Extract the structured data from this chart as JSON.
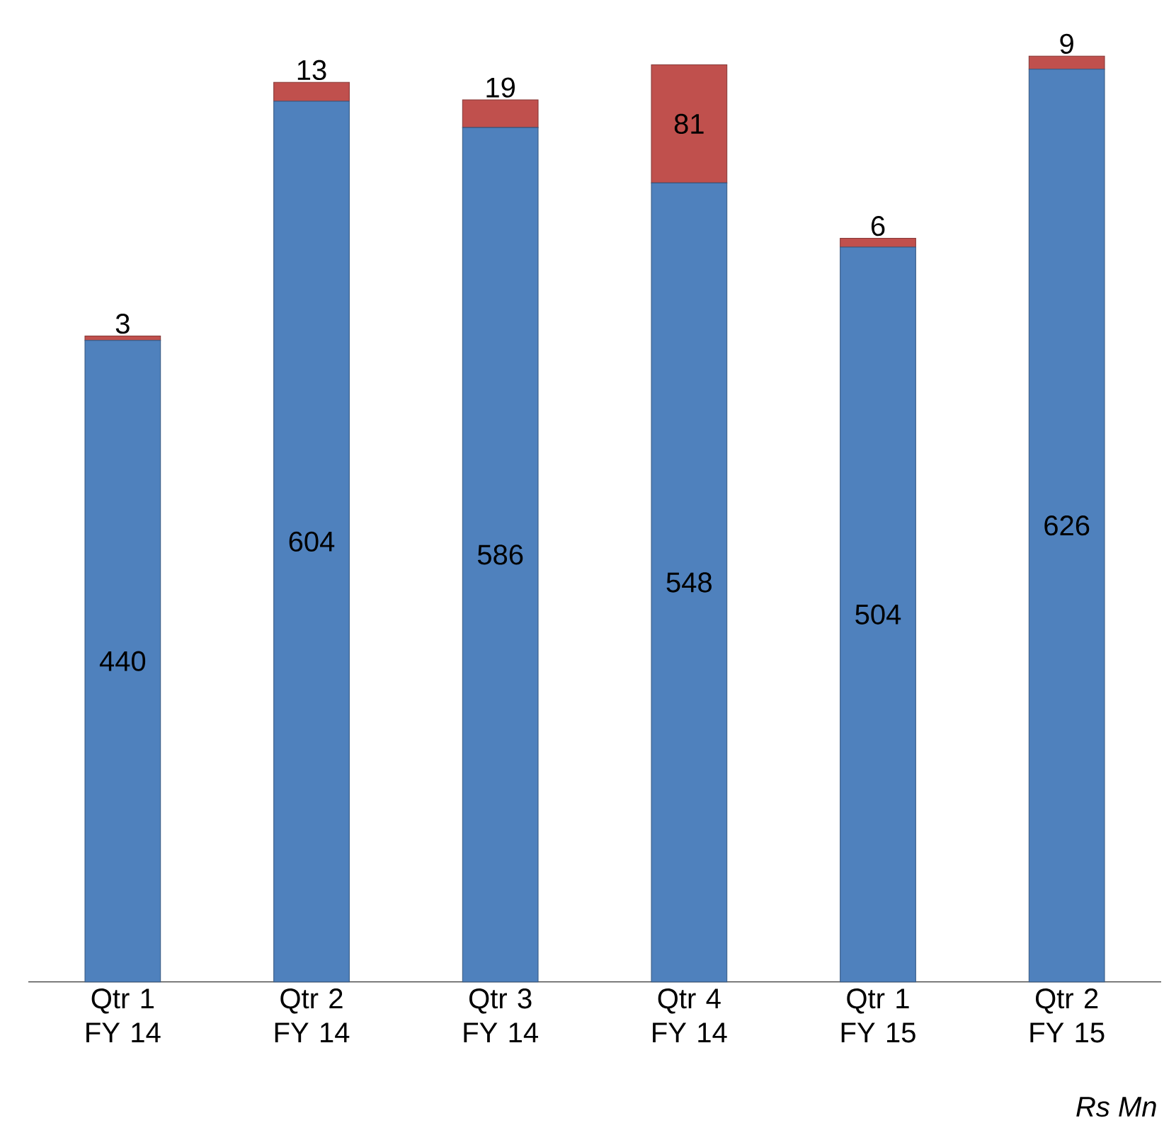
{
  "chart_data": {
    "type": "bar",
    "stacked": true,
    "data_labels": true,
    "categories": [
      "Qtr 1 FY 14",
      "Qtr 2 FY 14",
      "Qtr 3 FY 14",
      "Qtr 4 FY 14",
      "Qtr 1 FY 15",
      "Qtr 2 FY 15"
    ],
    "series": [
      {
        "color": "#4f81bd",
        "values": [
          440,
          604,
          586,
          548,
          504,
          626
        ]
      },
      {
        "color": "#c0504d",
        "values": [
          3,
          13,
          19,
          81,
          6,
          9
        ]
      }
    ],
    "annotations": [
      "Rs Mn"
    ]
  }
}
